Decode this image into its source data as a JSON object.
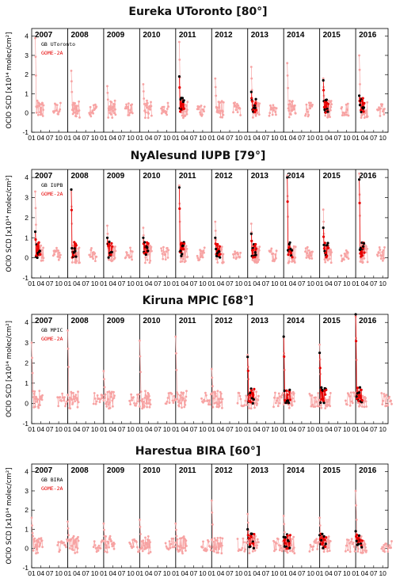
{
  "figure": {
    "y_axis_label": "OClO SCD [x10¹⁴ molec/cm²]",
    "x_tick_labels": [
      "01",
      "04",
      "07",
      "10"
    ],
    "y_tick_labels": [
      "-1",
      "0",
      "1",
      "2",
      "3",
      "4"
    ],
    "years": [
      "2007",
      "2008",
      "2009",
      "2010",
      "2011",
      "2012",
      "2013",
      "2014",
      "2015",
      "2016"
    ]
  },
  "chart_data": [
    {
      "type": "scatter",
      "title": "Eureka UToronto [80°]",
      "legend": [
        "GB UToronto",
        "GOME-2A"
      ],
      "legend_placement": "top-left",
      "ylim": [
        -1,
        4.4
      ],
      "xlim": [
        2007.0,
        2016.9
      ],
      "season_type": "polar",
      "years": [
        2007,
        2008,
        2009,
        2010,
        2011,
        2012,
        2013,
        2014,
        2015,
        2016
      ],
      "gome_peak_by_year": [
        3.9,
        2.2,
        1.4,
        1.5,
        3.7,
        1.8,
        2.4,
        2.6,
        1.8,
        3.0
      ],
      "ground_years": [
        2011,
        2013,
        2015,
        2016
      ],
      "ground_peak_by_year": [
        1.9,
        1.1,
        1.7,
        0.9
      ],
      "series": [
        {
          "name": "GB UToronto",
          "color": "#000000"
        },
        {
          "name": "GOME-2A",
          "color": "#e60000"
        }
      ]
    },
    {
      "type": "scatter",
      "title": "NyAlesund IUPB [79°]",
      "legend": [
        "GB IUPB",
        "GOME-2A"
      ],
      "legend_placement": "top-left",
      "ylim": [
        -1,
        4.4
      ],
      "xlim": [
        2007.0,
        2016.9
      ],
      "season_type": "polar",
      "years": [
        2007,
        2008,
        2009,
        2010,
        2011,
        2012,
        2013,
        2014,
        2015,
        2016
      ],
      "gome_peak_by_year": [
        3.3,
        3.4,
        1.6,
        1.5,
        3.6,
        1.8,
        1.7,
        4.1,
        2.4,
        4.2
      ],
      "ground_years": [
        2007,
        2008,
        2009,
        2010,
        2011,
        2012,
        2013,
        2014,
        2015,
        2016
      ],
      "ground_peak_by_year": [
        1.3,
        3.4,
        1.0,
        1.0,
        3.5,
        1.0,
        1.2,
        4.0,
        1.5,
        3.9
      ],
      "series": [
        {
          "name": "GB IUPB",
          "color": "#000000"
        },
        {
          "name": "GOME-2A",
          "color": "#e60000"
        }
      ]
    },
    {
      "type": "scatter",
      "title": "Kiruna MPIC [68°]",
      "legend": [
        "GB MPIC",
        "GOME-2A"
      ],
      "legend_placement": "top-left",
      "ylim": [
        -1,
        4.4
      ],
      "xlim": [
        2007.0,
        2016.9
      ],
      "season_type": "winter",
      "years": [
        2007,
        2008,
        2009,
        2010,
        2011,
        2012,
        2013,
        2014,
        2015,
        2016
      ],
      "gome_peak_by_year": [
        3.0,
        3.6,
        1.6,
        3.1,
        3.3,
        1.7,
        2.4,
        3.3,
        2.9,
        4.3
      ],
      "ground_years": [
        2013,
        2014,
        2015,
        2016
      ],
      "ground_peak_by_year": [
        2.3,
        3.3,
        2.5,
        4.4
      ],
      "series": [
        {
          "name": "GB MPIC",
          "color": "#000000"
        },
        {
          "name": "GOME-2A",
          "color": "#e60000"
        }
      ]
    },
    {
      "type": "scatter",
      "title": "Harestua BIRA [60°]",
      "legend": [
        "GB BIRA",
        "GOME-2A"
      ],
      "legend_placement": "top-left",
      "ylim": [
        -1,
        4.4
      ],
      "xlim": [
        2007.0,
        2016.9
      ],
      "season_type": "winter",
      "years": [
        2007,
        2008,
        2009,
        2010,
        2011,
        2012,
        2013,
        2014,
        2015,
        2016
      ],
      "gome_peak_by_year": [
        1.6,
        1.4,
        1.3,
        1.5,
        1.3,
        2.5,
        1.8,
        1.7,
        1.6,
        3.0
      ],
      "ground_years": [
        2013,
        2014,
        2015,
        2016
      ],
      "ground_peak_by_year": [
        1.0,
        0.6,
        0.7,
        0.9
      ],
      "series": [
        {
          "name": "GB BIRA",
          "color": "#000000"
        },
        {
          "name": "GOME-2A",
          "color": "#e60000"
        }
      ]
    }
  ],
  "colors": {
    "gome_light": "#f7a3a3",
    "gome_dark": "#e60000",
    "ground": "#000000"
  }
}
